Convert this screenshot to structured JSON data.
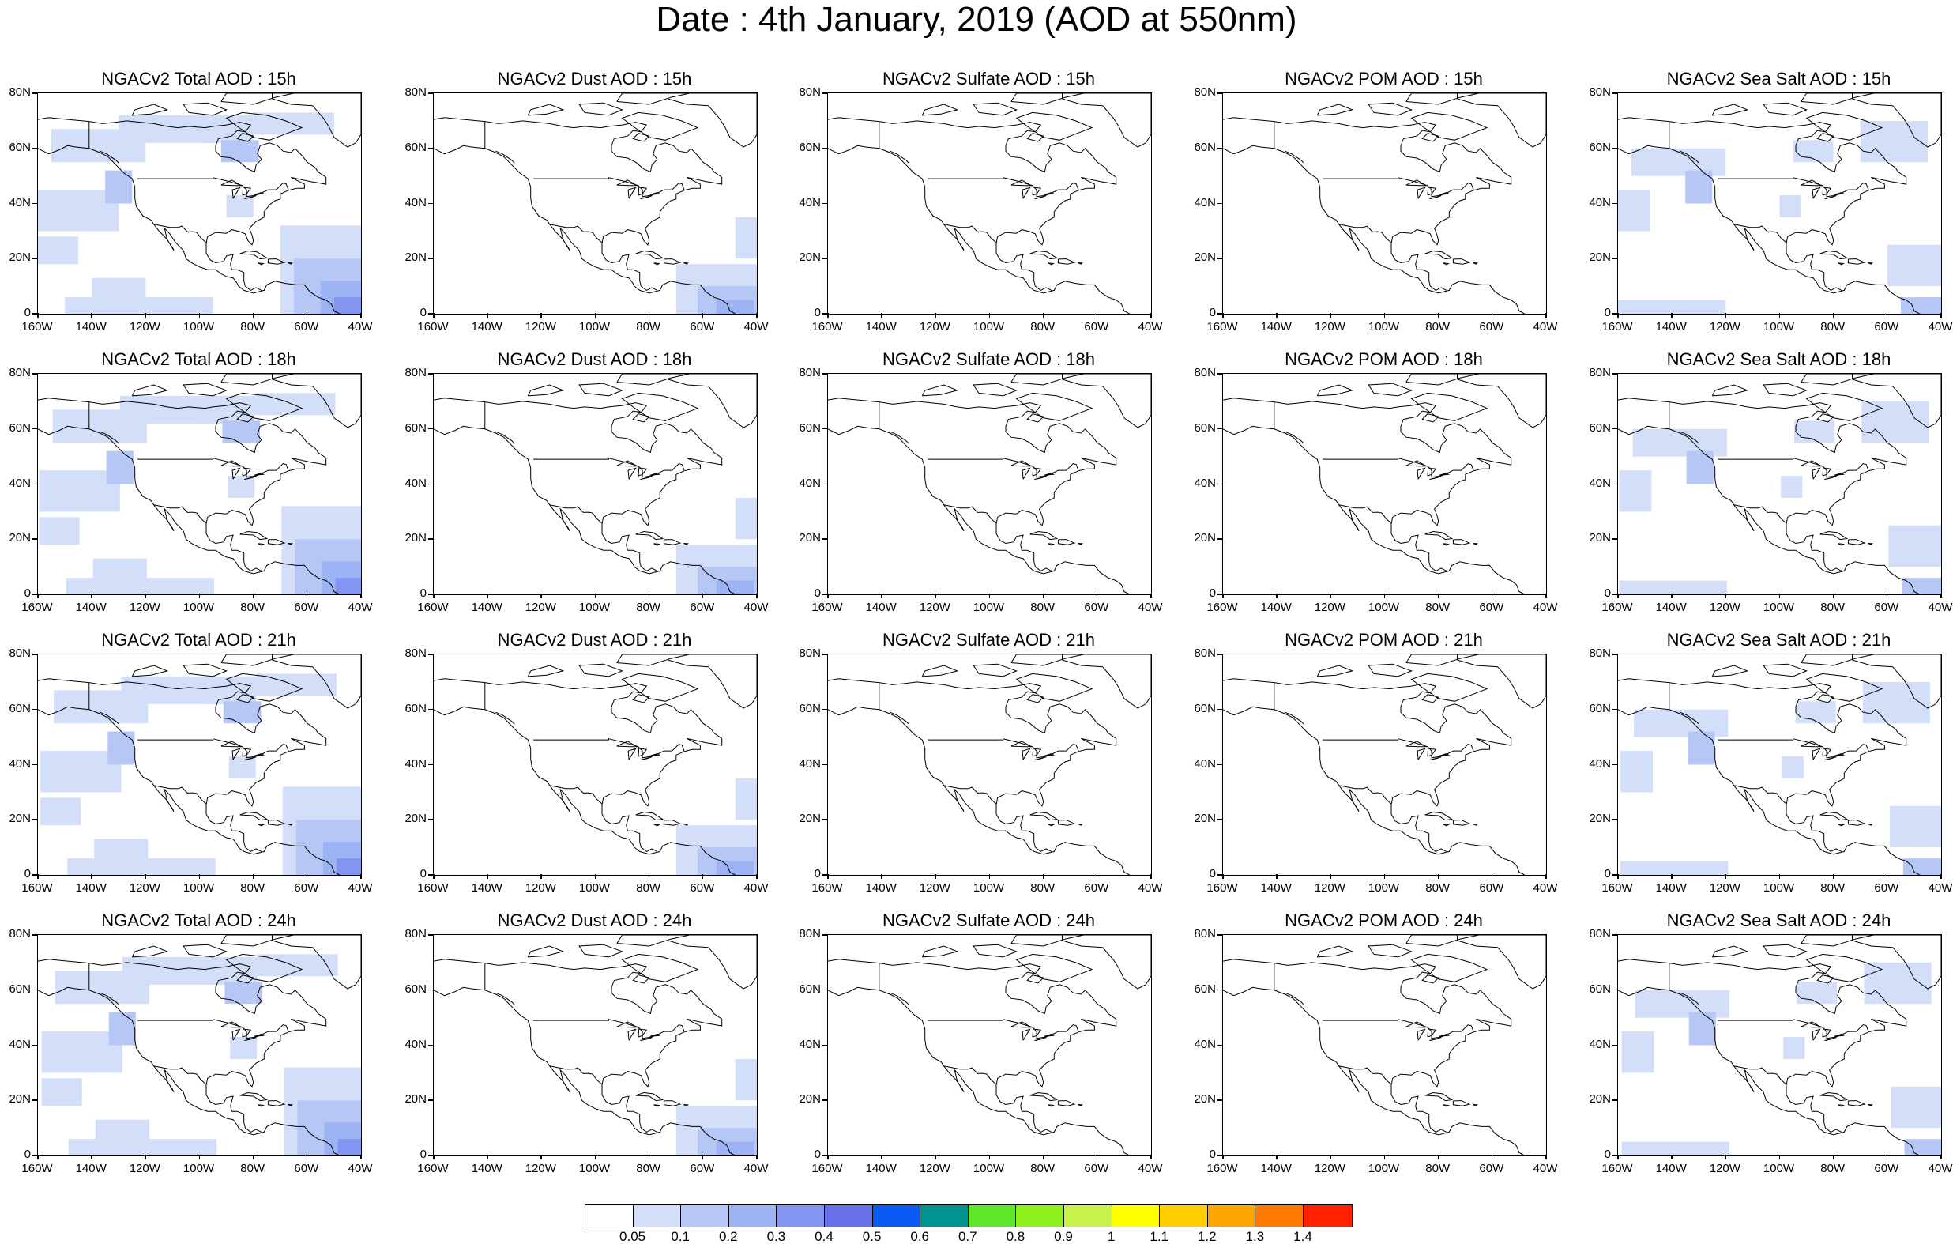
{
  "title": "Date : 4th January, 2019 (AOD at 550nm)",
  "lat_labels": [
    "80N",
    "60N",
    "40N",
    "20N",
    "0"
  ],
  "lon_labels": [
    "160W",
    "140W",
    "120W",
    "100W",
    "80W",
    "60W",
    "40W"
  ],
  "panels": [
    [
      {
        "title": "NGACv2 Total AOD : 15h",
        "species": "total"
      },
      {
        "title": "NGACv2 Dust AOD : 15h",
        "species": "dust"
      },
      {
        "title": "NGACv2 Sulfate AOD : 15h",
        "species": "sulfate"
      },
      {
        "title": "NGACv2 POM AOD : 15h",
        "species": "pom"
      },
      {
        "title": "NGACv2 Sea Salt AOD : 15h",
        "species": "seasalt"
      }
    ],
    [
      {
        "title": "NGACv2 Total AOD : 18h",
        "species": "total"
      },
      {
        "title": "NGACv2 Dust AOD : 18h",
        "species": "dust"
      },
      {
        "title": "NGACv2 Sulfate AOD : 18h",
        "species": "sulfate"
      },
      {
        "title": "NGACv2 POM AOD : 18h",
        "species": "pom"
      },
      {
        "title": "NGACv2 Sea Salt AOD : 18h",
        "species": "seasalt"
      }
    ],
    [
      {
        "title": "NGACv2 Total AOD : 21h",
        "species": "total"
      },
      {
        "title": "NGACv2 Dust AOD : 21h",
        "species": "dust"
      },
      {
        "title": "NGACv2 Sulfate AOD : 21h",
        "species": "sulfate"
      },
      {
        "title": "NGACv2 POM AOD : 21h",
        "species": "pom"
      },
      {
        "title": "NGACv2 Sea Salt AOD : 21h",
        "species": "seasalt"
      }
    ],
    [
      {
        "title": "NGACv2 Total AOD : 24h",
        "species": "total"
      },
      {
        "title": "NGACv2 Dust AOD : 24h",
        "species": "dust"
      },
      {
        "title": "NGACv2 Sulfate AOD : 24h",
        "species": "sulfate"
      },
      {
        "title": "NGACv2 POM AOD : 24h",
        "species": "pom"
      },
      {
        "title": "NGACv2 Sea Salt  AOD : 24h",
        "species": "seasalt"
      }
    ]
  ],
  "colorbar": {
    "colors": [
      "#ffffff",
      "#d3def9",
      "#b6c7f6",
      "#9db3f3",
      "#8395f0",
      "#6870ea",
      "#0a5af3",
      "#00938f",
      "#5fe82a",
      "#8ff020",
      "#c7f24a",
      "#ffff00",
      "#ffcd00",
      "#ffa600",
      "#ff7a00",
      "#ff2200"
    ],
    "labels": [
      "0.05",
      "0.1",
      "0.2",
      "0.3",
      "0.4",
      "0.5",
      "0.6",
      "0.7",
      "0.8",
      "0.9",
      "1",
      "1.1",
      "1.2",
      "1.3",
      "1.4"
    ]
  }
}
